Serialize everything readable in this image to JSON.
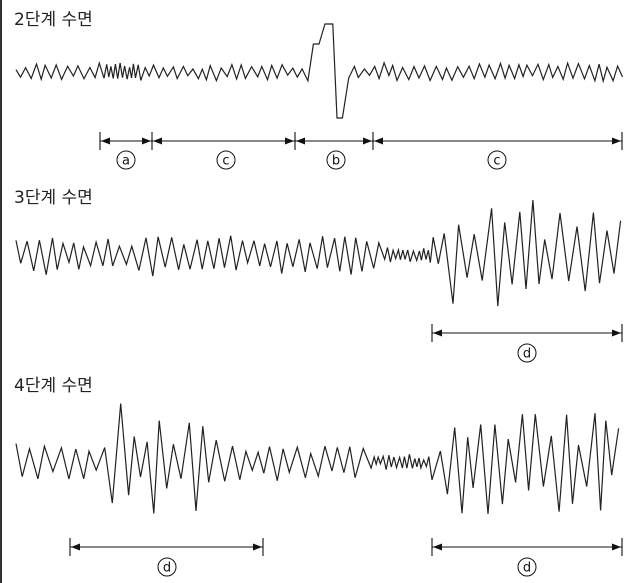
{
  "panels": [
    {
      "title": "2단계 수면",
      "markers": [
        {
          "label": "a"
        },
        {
          "label": "c"
        },
        {
          "label": "b"
        },
        {
          "label": "c"
        }
      ]
    },
    {
      "title": "3단계 수면",
      "markers": [
        {
          "label": "d"
        }
      ]
    },
    {
      "title": "4단계 수면",
      "markers": [
        {
          "label": "d"
        },
        {
          "label": "d"
        }
      ]
    }
  ],
  "colors": {
    "ink": "#222222",
    "background": "#ffffff"
  }
}
